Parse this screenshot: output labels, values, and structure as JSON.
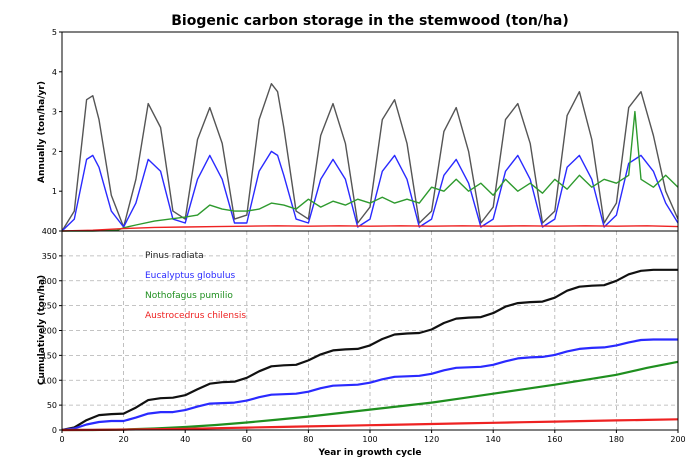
{
  "chart_data": {
    "title": "Biogenic carbon storage in the stemwood (ton/ha)",
    "xlabel": "Year in growth cycle",
    "grid": true,
    "colors": {
      "Pinus radiata": "#222222",
      "Eucalyptus globulus": "#2a2aff",
      "Nothofagus pumilio": "#1f8f1f",
      "Austrocedrus chilensis": "#ee2222"
    },
    "panels": [
      {
        "type": "line",
        "ylabel": "Annually (ton/ha/yr)",
        "xlim": [
          0,
          200
        ],
        "ylim": [
          0,
          5
        ],
        "yticks": [
          "0",
          "1",
          "2",
          "3",
          "4",
          "5"
        ],
        "series": [
          {
            "name": "Pinus radiata",
            "color": "#555555",
            "x": [
              0,
              4,
              8,
              10,
              12,
              16,
              20,
              24,
              28,
              32,
              36,
              40,
              44,
              48,
              52,
              56,
              60,
              64,
              68,
              70,
              72,
              76,
              80,
              84,
              88,
              92,
              96,
              100,
              104,
              108,
              112,
              116,
              120,
              124,
              128,
              132,
              136,
              140,
              144,
              148,
              152,
              156,
              160,
              164,
              168,
              172,
              176,
              180,
              184,
              188,
              192,
              196,
              200
            ],
            "y": [
              0,
              0.5,
              3.3,
              3.4,
              2.8,
              0.9,
              0.1,
              1.3,
              3.2,
              2.6,
              0.5,
              0.3,
              2.3,
              3.1,
              2.2,
              0.3,
              0.4,
              2.8,
              3.7,
              3.5,
              2.6,
              0.5,
              0.3,
              2.4,
              3.2,
              2.2,
              0.2,
              0.6,
              2.8,
              3.3,
              2.2,
              0.2,
              0.5,
              2.5,
              3.1,
              2.0,
              0.2,
              0.6,
              2.8,
              3.2,
              2.2,
              0.2,
              0.5,
              2.9,
              3.5,
              2.3,
              0.2,
              0.7,
              3.1,
              3.5,
              2.4,
              1.0,
              0.3
            ]
          },
          {
            "name": "Eucalyptus globulus",
            "color": "#2a2aff",
            "x": [
              0,
              4,
              8,
              10,
              12,
              16,
              20,
              24,
              28,
              32,
              36,
              40,
              44,
              48,
              52,
              56,
              60,
              64,
              68,
              70,
              72,
              76,
              80,
              84,
              88,
              92,
              96,
              100,
              104,
              108,
              112,
              116,
              120,
              124,
              128,
              132,
              136,
              140,
              144,
              148,
              152,
              156,
              160,
              164,
              168,
              172,
              176,
              180,
              184,
              188,
              192,
              196,
              200
            ],
            "y": [
              0,
              0.3,
              1.8,
              1.9,
              1.6,
              0.5,
              0.1,
              0.7,
              1.8,
              1.5,
              0.3,
              0.2,
              1.3,
              1.9,
              1.3,
              0.2,
              0.2,
              1.5,
              2.0,
              1.9,
              1.4,
              0.3,
              0.2,
              1.3,
              1.8,
              1.3,
              0.1,
              0.3,
              1.5,
              1.9,
              1.3,
              0.1,
              0.3,
              1.4,
              1.8,
              1.2,
              0.1,
              0.3,
              1.5,
              1.9,
              1.3,
              0.1,
              0.3,
              1.6,
              1.9,
              1.3,
              0.1,
              0.4,
              1.7,
              1.9,
              1.5,
              0.7,
              0.2
            ]
          },
          {
            "name": "Nothofagus pumilio",
            "color": "#2e9a2e",
            "x": [
              0,
              10,
              18,
              20,
              24,
              30,
              40,
              44,
              48,
              52,
              56,
              60,
              64,
              68,
              72,
              76,
              80,
              84,
              88,
              92,
              96,
              100,
              104,
              108,
              112,
              116,
              120,
              124,
              128,
              132,
              136,
              140,
              144,
              148,
              152,
              156,
              160,
              164,
              168,
              172,
              176,
              180,
              184,
              186,
              188,
              192,
              196,
              200
            ],
            "y": [
              0,
              0,
              0.02,
              0.08,
              0.15,
              0.25,
              0.35,
              0.4,
              0.65,
              0.55,
              0.5,
              0.5,
              0.55,
              0.7,
              0.65,
              0.55,
              0.8,
              0.6,
              0.75,
              0.65,
              0.8,
              0.7,
              0.85,
              0.7,
              0.8,
              0.7,
              1.1,
              1.0,
              1.3,
              1.0,
              1.2,
              0.9,
              1.3,
              1.0,
              1.2,
              0.95,
              1.3,
              1.05,
              1.4,
              1.1,
              1.3,
              1.2,
              1.4,
              3.0,
              1.3,
              1.1,
              1.4,
              1.1
            ]
          },
          {
            "name": "Austrocedrus chilensis",
            "color": "#ee2222",
            "x": [
              0,
              10,
              20,
              30,
              40,
              50,
              60,
              70,
              80,
              90,
              100,
              110,
              120,
              130,
              140,
              150,
              160,
              170,
              180,
              190,
              200
            ],
            "y": [
              0,
              0.02,
              0.06,
              0.09,
              0.1,
              0.11,
              0.12,
              0.13,
              0.12,
              0.13,
              0.12,
              0.13,
              0.12,
              0.13,
              0.12,
              0.13,
              0.12,
              0.13,
              0.12,
              0.13,
              0.11
            ]
          }
        ]
      },
      {
        "type": "line",
        "ylabel": "Cumulatively (ton/ha)",
        "xlabel": "Year in growth cycle",
        "xlim": [
          0,
          200
        ],
        "ylim": [
          0,
          400
        ],
        "yticks": [
          "0",
          "50",
          "100",
          "150",
          "200",
          "250",
          "300",
          "350",
          "400"
        ],
        "xticks": [
          "0",
          "20",
          "40",
          "60",
          "80",
          "100",
          "120",
          "140",
          "160",
          "180",
          "200"
        ],
        "legend_position": "upper-left",
        "series": [
          {
            "name": "Pinus radiata",
            "color": "#111111",
            "x": [
              0,
              4,
              8,
              12,
              16,
              20,
              24,
              28,
              32,
              36,
              40,
              44,
              48,
              52,
              56,
              60,
              64,
              68,
              72,
              76,
              80,
              84,
              88,
              92,
              96,
              100,
              104,
              108,
              112,
              116,
              120,
              124,
              128,
              132,
              136,
              140,
              144,
              148,
              152,
              156,
              160,
              164,
              168,
              172,
              176,
              180,
              184,
              188,
              192,
              196,
              200
            ],
            "y": [
              0,
              5,
              20,
              30,
              32,
              33,
              45,
              60,
              64,
              65,
              70,
              82,
              93,
              96,
              97,
              105,
              118,
              128,
              130,
              131,
              140,
              152,
              160,
              162,
              163,
              170,
              183,
              192,
              194,
              195,
              202,
              215,
              224,
              226,
              227,
              235,
              248,
              255,
              257,
              258,
              266,
              280,
              288,
              290,
              291,
              300,
              313,
              320,
              322,
              322,
              322
            ]
          },
          {
            "name": "Eucalyptus globulus",
            "color": "#2a2aff",
            "x": [
              0,
              4,
              8,
              12,
              16,
              20,
              24,
              28,
              32,
              36,
              40,
              44,
              48,
              52,
              56,
              60,
              64,
              68,
              72,
              76,
              80,
              84,
              88,
              92,
              96,
              100,
              104,
              108,
              112,
              116,
              120,
              124,
              128,
              132,
              136,
              140,
              144,
              148,
              152,
              156,
              160,
              164,
              168,
              172,
              176,
              180,
              184,
              188,
              192,
              196,
              200
            ],
            "y": [
              0,
              3,
              11,
              16,
              18,
              18,
              25,
              33,
              36,
              36,
              40,
              47,
              53,
              54,
              55,
              59,
              66,
              71,
              72,
              73,
              77,
              84,
              89,
              90,
              91,
              95,
              102,
              107,
              108,
              109,
              113,
              120,
              125,
              126,
              127,
              131,
              138,
              144,
              146,
              147,
              151,
              158,
              163,
              165,
              166,
              170,
              176,
              181,
              182,
              182,
              182
            ]
          },
          {
            "name": "Nothofagus pumilio",
            "color": "#1f8f1f",
            "x": [
              0,
              10,
              20,
              30,
              40,
              50,
              60,
              70,
              80,
              90,
              100,
              110,
              120,
              130,
              140,
              150,
              160,
              170,
              180,
              190,
              200
            ],
            "y": [
              0,
              0,
              1,
              3,
              6,
              10,
              15,
              21,
              27,
              34,
              41,
              48,
              55,
              64,
              73,
              82,
              91,
              101,
              111,
              125,
              137
            ]
          },
          {
            "name": "Austrocedrus chilensis",
            "color": "#ee2222",
            "x": [
              0,
              10,
              20,
              30,
              40,
              50,
              60,
              70,
              80,
              90,
              100,
              110,
              120,
              130,
              140,
              150,
              160,
              170,
              180,
              190,
              200
            ],
            "y": [
              0,
              0.2,
              0.8,
              1.6,
              2.5,
              3.6,
              4.8,
              6.0,
              7.2,
              8.4,
              9.6,
              10.8,
              12.0,
              13.2,
              14.4,
              15.6,
              16.8,
              18.0,
              19.2,
              20.4,
              21.5
            ]
          }
        ]
      }
    ]
  }
}
